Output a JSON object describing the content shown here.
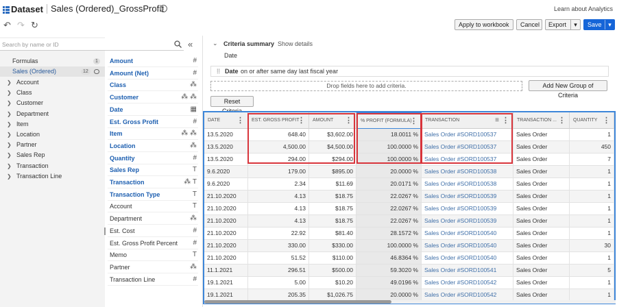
{
  "header": {
    "logo": "Dataset",
    "title": "Sales (Ordered)_GrossProfit",
    "info_glyph": "i",
    "learn_link": "Learn about Analytics"
  },
  "toolbar": {
    "undo": "↶",
    "redo": "↷",
    "refresh": "↻",
    "apply": "Apply to workbook",
    "cancel": "Cancel",
    "export": "Export",
    "save": "Save",
    "caret": "▾"
  },
  "search": {
    "placeholder": "Search by name or ID",
    "collapse": "«"
  },
  "tree": {
    "formulas": {
      "label": "Formulas",
      "count": "1"
    },
    "sales": {
      "label": "Sales (Ordered)",
      "count": "12"
    },
    "nodes": [
      "Account",
      "Class",
      "Customer",
      "Department",
      "Item",
      "Location",
      "Partner",
      "Sales Rep",
      "Transaction",
      "Transaction Line"
    ]
  },
  "fields": [
    {
      "label": "Amount",
      "icon": "#",
      "bold": true
    },
    {
      "label": "Amount (Net)",
      "icon": "#",
      "bold": true
    },
    {
      "label": "Class",
      "icon": "⁂",
      "bold": true
    },
    {
      "label": "Customer",
      "icon": "⁂ ⁂",
      "bold": true
    },
    {
      "label": "Date",
      "icon": "▦",
      "bold": true
    },
    {
      "label": "Est. Gross Profit",
      "icon": "#",
      "bold": true
    },
    {
      "label": "Item",
      "icon": "⁂ ⁂",
      "bold": true
    },
    {
      "label": "Location",
      "icon": "⁂",
      "bold": true
    },
    {
      "label": "Quantity",
      "icon": "#",
      "bold": true
    },
    {
      "label": "Sales Rep",
      "icon": "T",
      "bold": true
    },
    {
      "label": "Transaction",
      "icon": "⁂ T",
      "bold": true
    },
    {
      "label": "Transaction Type",
      "icon": "T",
      "bold": true
    },
    {
      "label": "Account",
      "icon": "T",
      "bold": false
    },
    {
      "label": "Department",
      "icon": "⁂",
      "bold": false
    },
    {
      "label": "Est. Cost",
      "icon": "#",
      "bold": false
    },
    {
      "label": "Est. Gross Profit Percent",
      "icon": "#",
      "bold": false
    },
    {
      "label": "Memo",
      "icon": "T",
      "bold": false
    },
    {
      "label": "Partner",
      "icon": "⁂",
      "bold": false
    },
    {
      "label": "Transaction Line",
      "icon": "#",
      "bold": false
    }
  ],
  "criteria": {
    "title": "Criteria summary",
    "show_details": "Show details",
    "summary_item": "Date",
    "filter_field": "Date",
    "filter_text": "on or after same day last fiscal year",
    "drop_text": "Drop fields here to add criteria.",
    "add_group": "Add New Group of Criteria",
    "reset": "Reset Criteria"
  },
  "table": {
    "columns": [
      "DATE",
      "EST. GROSS PROFIT",
      "AMOUNT",
      "% PROFIT (FORMULA)",
      "TRANSACTION",
      "TRANSACTION ...",
      "QUANTITY"
    ],
    "rows": [
      [
        "13.5.2020",
        "648.40",
        "$3,602.00",
        "18.0011 %",
        "Sales Order #SORD100537",
        "Sales Order",
        "1"
      ],
      [
        "13.5.2020",
        "4,500.00",
        "$4,500.00",
        "100.0000 %",
        "Sales Order #SORD100537",
        "Sales Order",
        "450"
      ],
      [
        "13.5.2020",
        "294.00",
        "$294.00",
        "100.0000 %",
        "Sales Order #SORD100537",
        "Sales Order",
        "7"
      ],
      [
        "9.6.2020",
        "179.00",
        "$895.00",
        "20.0000 %",
        "Sales Order #SORD100538",
        "Sales Order",
        "1"
      ],
      [
        "9.6.2020",
        "2.34",
        "$11.69",
        "20.0171 %",
        "Sales Order #SORD100538",
        "Sales Order",
        "1"
      ],
      [
        "21.10.2020",
        "4.13",
        "$18.75",
        "22.0267 %",
        "Sales Order #SORD100539",
        "Sales Order",
        "1"
      ],
      [
        "21.10.2020",
        "4.13",
        "$18.75",
        "22.0267 %",
        "Sales Order #SORD100539",
        "Sales Order",
        "1"
      ],
      [
        "21.10.2020",
        "4.13",
        "$18.75",
        "22.0267 %",
        "Sales Order #SORD100539",
        "Sales Order",
        "1"
      ],
      [
        "21.10.2020",
        "22.92",
        "$81.40",
        "28.1572 %",
        "Sales Order #SORD100540",
        "Sales Order",
        "1"
      ],
      [
        "21.10.2020",
        "330.00",
        "$330.00",
        "100.0000 %",
        "Sales Order #SORD100540",
        "Sales Order",
        "30"
      ],
      [
        "21.10.2020",
        "51.52",
        "$110.00",
        "46.8364 %",
        "Sales Order #SORD100540",
        "Sales Order",
        "1"
      ],
      [
        "11.1.2021",
        "296.51",
        "$500.00",
        "59.3020 %",
        "Sales Order #SORD100541",
        "Sales Order",
        "5"
      ],
      [
        "19.1.2021",
        "5.00",
        "$10.20",
        "49.0196 %",
        "Sales Order #SORD100542",
        "Sales Order",
        "1"
      ],
      [
        "19.1.2021",
        "205.35",
        "$1,026.75",
        "20.0000 %",
        "Sales Order #SORD100542",
        "Sales Order",
        "1"
      ]
    ]
  },
  "colors": {
    "accent": "#1565d8",
    "link": "#3f6fa8",
    "highlight_box": "#d8343b",
    "grid_border": "#3d86d9"
  }
}
